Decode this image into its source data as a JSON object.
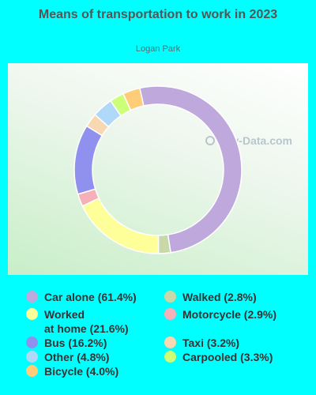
{
  "header": {
    "title": "Means of transportation to work in 2023",
    "subtitle": "Logan Park",
    "watermark": "City-Data.com"
  },
  "chart_data": {
    "type": "pie",
    "style": "donut",
    "title": "Means of transportation to work in 2023",
    "subtitle": "Logan Park",
    "legend_position": "bottom",
    "slices": [
      {
        "label": "Car alone",
        "value": 61.4,
        "color": "#bfa8dc",
        "legend": "Car alone (61.4%)"
      },
      {
        "label": "Walked",
        "value": 2.8,
        "color": "#c8d8a8",
        "legend": "Walked (2.8%)"
      },
      {
        "label": "Worked at home",
        "value": 21.6,
        "color": "#ffff99",
        "legend": "Worked at home (21.6%)"
      },
      {
        "label": "Motorcycle",
        "value": 2.9,
        "color": "#f5b0b8",
        "legend": "Motorcycle (2.9%)"
      },
      {
        "label": "Bus",
        "value": 16.2,
        "color": "#9090ee",
        "legend": "Bus (16.2%)"
      },
      {
        "label": "Taxi",
        "value": 3.2,
        "color": "#f8d8b0",
        "legend": "Taxi (3.2%)"
      },
      {
        "label": "Other",
        "value": 4.8,
        "color": "#b0d8f8",
        "legend": "Other (4.8%)"
      },
      {
        "label": "Carpooled",
        "value": 3.3,
        "color": "#ccff77",
        "legend": "Carpooled (3.3%)"
      },
      {
        "label": "Bicycle",
        "value": 4.0,
        "color": "#ffcc77",
        "legend": "Bicycle (4.0%)"
      }
    ],
    "ring_order": [
      "Car alone",
      "Walked",
      "Worked at home",
      "Motorcycle",
      "Bus",
      "Taxi",
      "Other",
      "Carpooled",
      "Bicycle"
    ]
  },
  "legend": {
    "left": [
      {
        "text": "Car alone (61.4%)",
        "color": "#bfa8dc",
        "name": "legend-car-alone"
      },
      {
        "text": "Worked at home (21.6%)",
        "color": "#ffff99",
        "name": "legend-worked-at-home",
        "line1": "Worked",
        "line2": "at home (21.6%)"
      },
      {
        "text": "Bus (16.2%)",
        "color": "#9090ee",
        "name": "legend-bus"
      },
      {
        "text": "Other (4.8%)",
        "color": "#b0d8f8",
        "name": "legend-other"
      },
      {
        "text": "Bicycle (4.0%)",
        "color": "#ffcc77",
        "name": "legend-bicycle"
      }
    ],
    "right": [
      {
        "text": "Walked (2.8%)",
        "color": "#c8d8a8",
        "name": "legend-walked"
      },
      {
        "text": "Motorcycle (2.9%)",
        "color": "#f5b0b8",
        "name": "legend-motorcycle"
      },
      {
        "text": "Taxi (3.2%)",
        "color": "#f8d8b0",
        "name": "legend-taxi"
      },
      {
        "text": "Carpooled (3.3%)",
        "color": "#ccff77",
        "name": "legend-carpooled"
      }
    ]
  }
}
